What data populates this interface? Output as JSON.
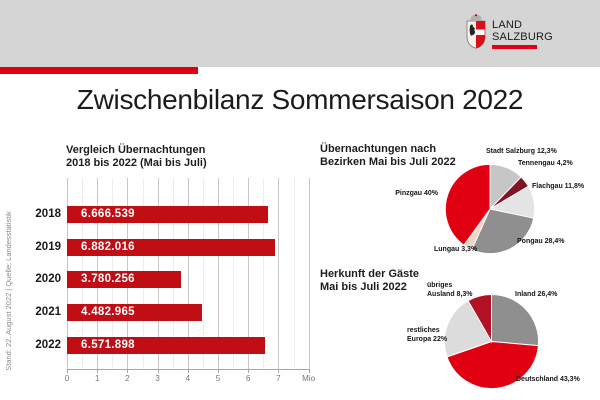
{
  "header": {
    "logo": {
      "line1": "LAND",
      "line2": "SALZBURG"
    },
    "title": "Zwischenbilanz Sommersaison 2022"
  },
  "sidebar_note": "Stand: 22. August 2022 | Quelle: Landesstatistik",
  "colors": {
    "accent_red": "#e10012",
    "bar_red": "#c10d14",
    "header_gray": "#d5d5d5",
    "dark_maroon": "#801425",
    "crimson": "#b21126",
    "mid_gray": "#8f8f8f",
    "light_gray": "#c6c6c6",
    "lighter_gray": "#e4e4e4",
    "pale_pink": "#eed5c6"
  },
  "chart_data": [
    {
      "type": "bar",
      "orientation": "horizontal",
      "title": "Vergleich Übernachtungen 2018 bis 2022 (Mai bis Juli)",
      "title_lines": [
        "Vergleich Übernachtungen",
        "2018 bis 2022 (Mai bis Juli)"
      ],
      "categories": [
        "2018",
        "2019",
        "2020",
        "2021",
        "2022"
      ],
      "values": [
        6666539,
        6882016,
        3780256,
        4482965,
        6571898
      ],
      "value_labels": [
        "6.666.539",
        "6.882.016",
        "3.780.256",
        "4.482.965",
        "6.571.898"
      ],
      "xlabel": "Mio",
      "x_ticks": [
        "0",
        "1",
        "2",
        "3",
        "4",
        "5",
        "6",
        "7",
        "Mio"
      ],
      "xlim": [
        0,
        8000000
      ],
      "grid": true,
      "bar_color": "#c10d14"
    },
    {
      "type": "pie",
      "title": "Übernachtungen nach Bezirken Mai bis Juli 2022",
      "title_lines": [
        "Übernachtungen nach",
        "Bezirken Mai bis Juli 2022"
      ],
      "start_angle_deg": 0,
      "direction": "clockwise",
      "slices": [
        {
          "name": "Stadt Salzburg",
          "pct": 12.3,
          "label": "Stadt Salzburg 12,3%",
          "color": "#c6c6c6"
        },
        {
          "name": "Tennengau",
          "pct": 4.2,
          "label": "Tennengau 4,2%",
          "color": "#801425"
        },
        {
          "name": "Flachgau",
          "pct": 11.8,
          "label": "Flachgau 11,8%",
          "color": "#e4e4e4"
        },
        {
          "name": "Pongau",
          "pct": 28.4,
          "label": "Pongau 28,4%",
          "color": "#8f8f8f"
        },
        {
          "name": "Lungau",
          "pct": 3.3,
          "label": "Lungau 3,3%",
          "color": "#eed5c6"
        },
        {
          "name": "Pinzgau",
          "pct": 40,
          "label": "Pinzgau 40%",
          "color": "#e10012"
        }
      ]
    },
    {
      "type": "pie",
      "title": "Herkunft der Gäste Mai bis Juli 2022",
      "title_lines": [
        "Herkunft der Gäste",
        "Mai bis Juli 2022"
      ],
      "start_angle_deg": 0,
      "direction": "clockwise",
      "slices": [
        {
          "name": "Inland",
          "pct": 26.4,
          "label": "Inland 26,4%",
          "color": "#8f8f8f"
        },
        {
          "name": "Deutschland",
          "pct": 43.3,
          "label": "Deutschland 43,3%",
          "color": "#e10012"
        },
        {
          "name": "restliches Europa",
          "pct": 22,
          "label": "restliches Europa 22%",
          "color": "#dcdcdc"
        },
        {
          "name": "übriges Ausland",
          "pct": 8.3,
          "label": "übriges Ausland 8,3%",
          "color": "#b21126"
        }
      ]
    }
  ]
}
